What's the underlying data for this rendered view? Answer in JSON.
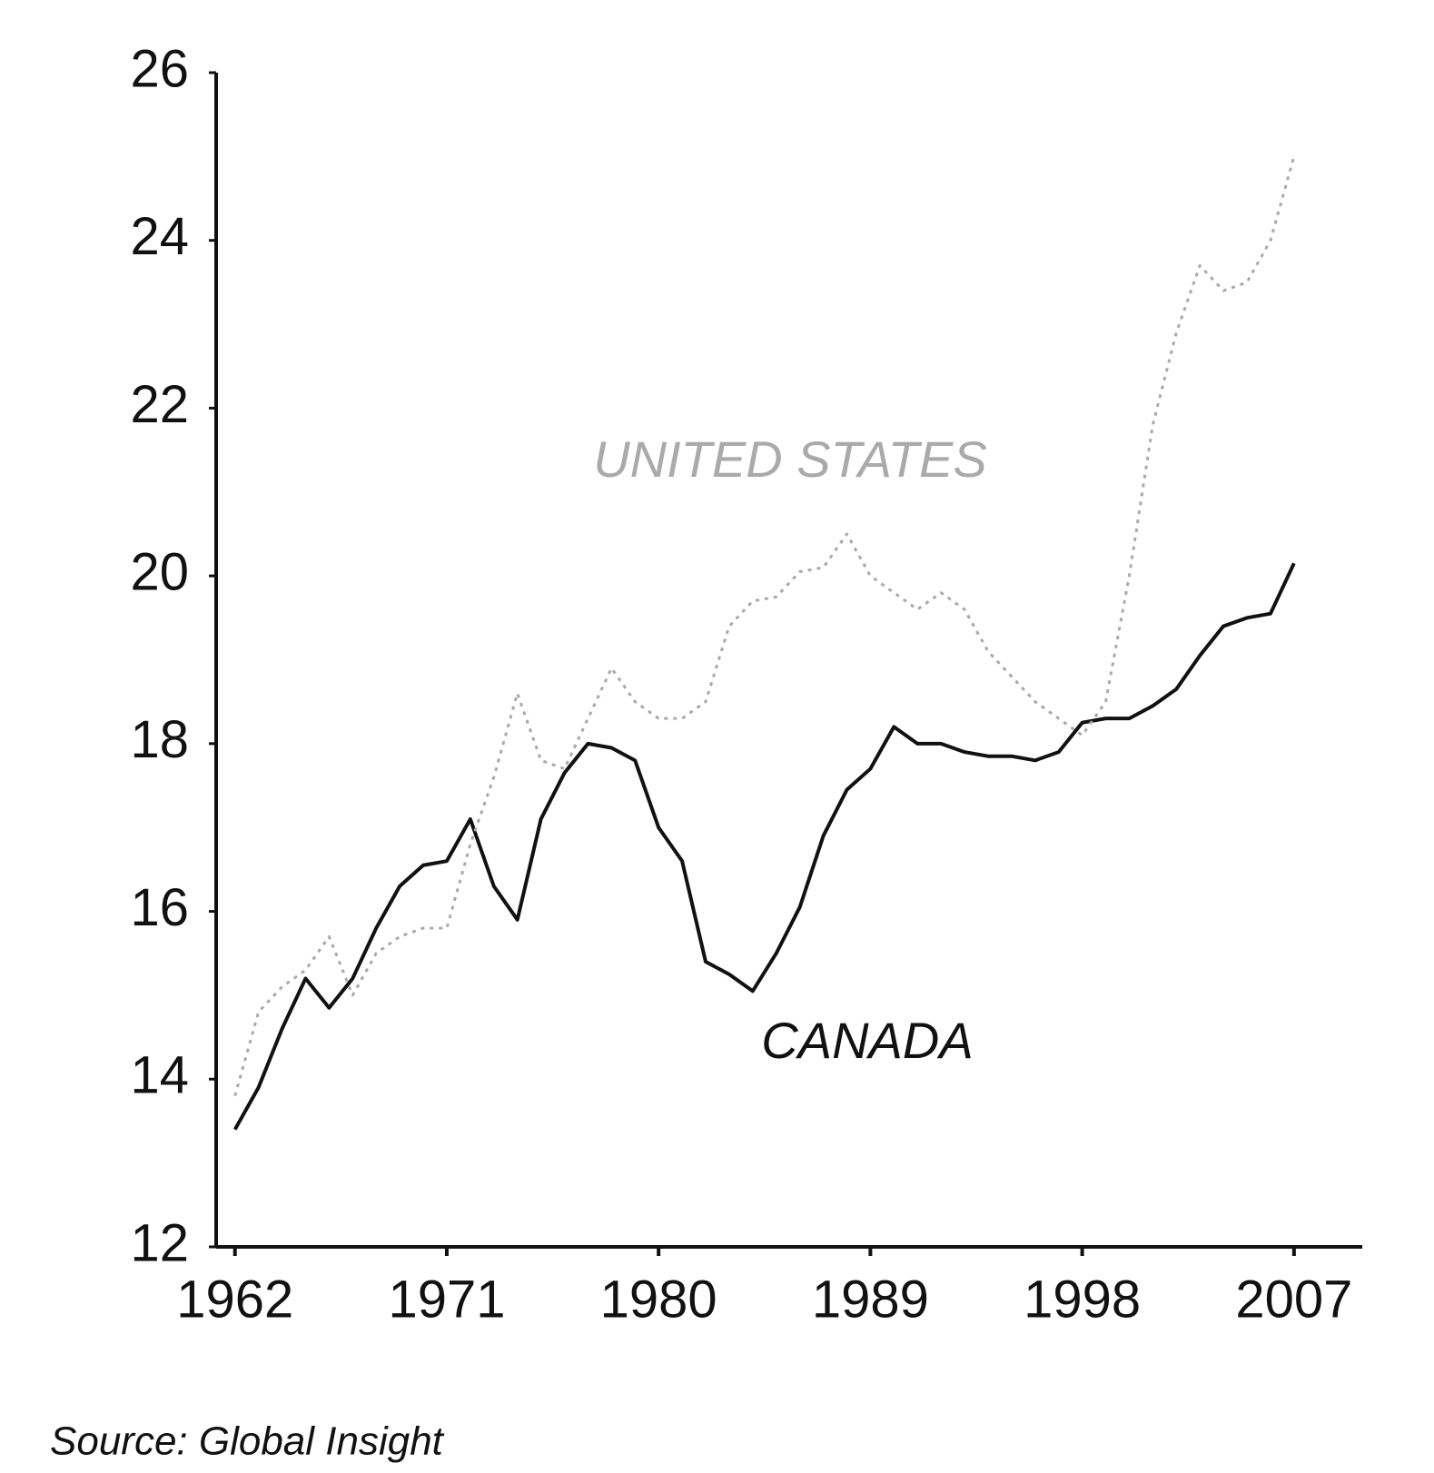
{
  "chart_data": {
    "type": "line",
    "source": "Source: Global Insight",
    "x": [
      1962,
      1963,
      1964,
      1965,
      1966,
      1967,
      1968,
      1969,
      1970,
      1971,
      1972,
      1973,
      1974,
      1975,
      1976,
      1977,
      1978,
      1979,
      1980,
      1981,
      1982,
      1983,
      1984,
      1985,
      1986,
      1987,
      1988,
      1989,
      1990,
      1991,
      1992,
      1993,
      1994,
      1995,
      1996,
      1997,
      1998,
      1999,
      2000,
      2001,
      2002,
      2003,
      2004,
      2005,
      2006,
      2007
    ],
    "series": [
      {
        "name": "CANADA",
        "color": "#111111",
        "style": "solid",
        "values": [
          13.4,
          13.9,
          14.6,
          15.2,
          14.85,
          15.2,
          15.8,
          16.3,
          16.55,
          16.6,
          17.1,
          16.3,
          15.9,
          17.1,
          17.65,
          18.0,
          17.95,
          17.8,
          17.0,
          16.6,
          15.4,
          15.25,
          15.05,
          15.5,
          16.05,
          16.9,
          17.45,
          17.7,
          18.2,
          18.0,
          18.0,
          17.9,
          17.85,
          17.85,
          17.8,
          17.9,
          18.25,
          18.3,
          18.3,
          18.45,
          18.65,
          19.05,
          19.4,
          19.5,
          19.55,
          20.15
        ]
      },
      {
        "name": "UNITED STATES",
        "color": "#aaaaaa",
        "style": "dotted",
        "values": [
          13.8,
          14.8,
          15.1,
          15.3,
          15.7,
          15.0,
          15.5,
          15.7,
          15.8,
          15.8,
          16.8,
          17.6,
          18.6,
          17.8,
          17.7,
          18.3,
          18.9,
          18.5,
          18.3,
          18.3,
          18.5,
          19.4,
          19.7,
          19.75,
          20.05,
          20.1,
          20.5,
          20.0,
          19.8,
          19.6,
          19.8,
          19.6,
          19.1,
          18.8,
          18.5,
          18.3,
          18.1,
          18.5,
          20.0,
          21.8,
          22.9,
          23.7,
          23.4,
          23.5,
          24.0,
          25.0
        ]
      }
    ],
    "xlim": [
      1961.2,
      2009.9
    ],
    "ylim": [
      12,
      26
    ],
    "xticks": [
      1962,
      1971,
      1980,
      1989,
      1998,
      2007
    ],
    "yticks": [
      12,
      14,
      16,
      18,
      20,
      22,
      24,
      26
    ],
    "grid": false
  }
}
